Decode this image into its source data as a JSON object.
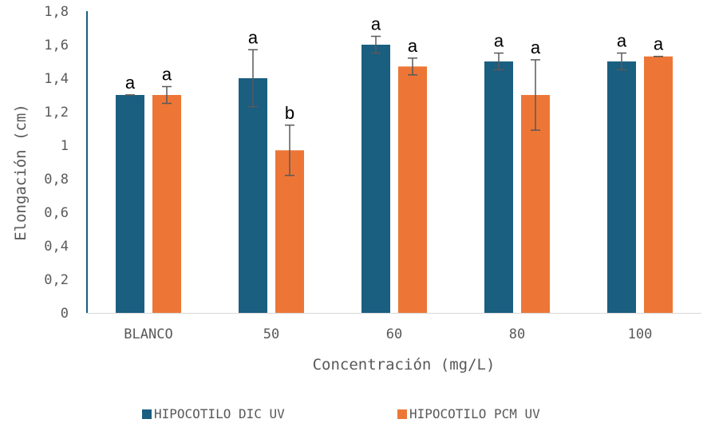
{
  "chart_data": {
    "type": "bar",
    "title": "",
    "xlabel": "Concentración (mg/L)",
    "ylabel": "Elongación (cm)",
    "categories": [
      "BLANCO",
      "50",
      "60",
      "80",
      "100"
    ],
    "ylim": [
      0,
      1.8
    ],
    "yticks": [
      0,
      0.2,
      0.4,
      0.6,
      0.8,
      1,
      1.2,
      1.4,
      1.6,
      1.8
    ],
    "ytick_labels": [
      "0",
      "0,2",
      "0,4",
      "0,6",
      "0,8",
      "1",
      "1,2",
      "1,4",
      "1,6",
      "1,8"
    ],
    "grid": false,
    "legend_position": "bottom",
    "series": [
      {
        "name": "HIPOCOTILO DIC UV",
        "color": "#1a5e80",
        "values": [
          1.3,
          1.4,
          1.6,
          1.5,
          1.5
        ],
        "errors": [
          0.0,
          0.17,
          0.05,
          0.05,
          0.05
        ],
        "labels": [
          "a",
          "a",
          "a",
          "a",
          "a"
        ]
      },
      {
        "name": "HIPOCOTILO PCM UV",
        "color": "#ed7636",
        "values": [
          1.3,
          0.97,
          1.47,
          1.3,
          1.53
        ],
        "errors": [
          0.05,
          0.15,
          0.05,
          0.21,
          0.0
        ],
        "labels": [
          "a",
          "b",
          "a",
          "a",
          "a"
        ]
      }
    ]
  }
}
